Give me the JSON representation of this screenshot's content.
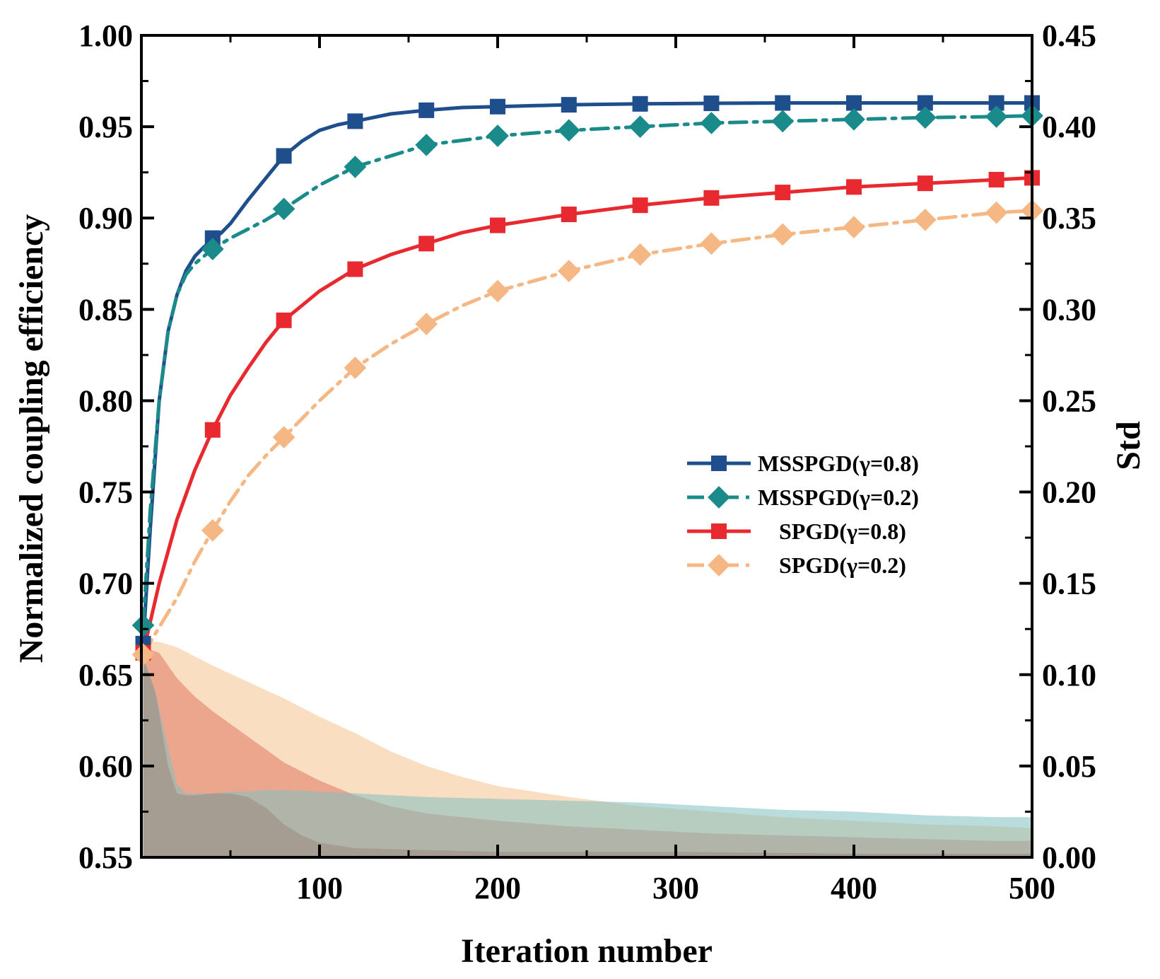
{
  "chart_data": {
    "type": "line",
    "xlabel": "Iteration number",
    "ylabel": "Normalized coupling efficiency",
    "y2label": "Std",
    "xlim": [
      0,
      500
    ],
    "ylim": [
      0.55,
      1.0
    ],
    "y2lim": [
      0.0,
      0.45
    ],
    "x_ticks": [
      100,
      200,
      300,
      400,
      500
    ],
    "x_tick_labels": [
      "100",
      "200",
      "300",
      "400",
      "500"
    ],
    "y_ticks": [
      0.55,
      0.6,
      0.65,
      0.7,
      0.75,
      0.8,
      0.85,
      0.9,
      0.95,
      1.0
    ],
    "y_tick_labels": [
      "0.55",
      "0.60",
      "0.65",
      "0.70",
      "0.75",
      "0.80",
      "0.85",
      "0.90",
      "0.95",
      "1.00"
    ],
    "y2_ticks": [
      0.0,
      0.05,
      0.1,
      0.15,
      0.2,
      0.25,
      0.3,
      0.35,
      0.4,
      0.45
    ],
    "y2_tick_labels": [
      "0.00",
      "0.05",
      "0.10",
      "0.15",
      "0.20",
      "0.25",
      "0.30",
      "0.35",
      "0.40",
      "0.45"
    ],
    "legend_position": "center-right",
    "series": [
      {
        "name": "MSSPGD(γ=0.8)",
        "color": "#1f4e8c",
        "dash": "solid",
        "marker": "square",
        "curve_x": [
          1,
          5,
          10,
          15,
          20,
          25,
          30,
          35,
          40,
          45,
          50,
          60,
          70,
          80,
          90,
          100,
          110,
          120,
          140,
          160,
          180,
          200,
          240,
          280,
          320,
          360,
          400,
          440,
          480,
          500
        ],
        "curve_y": [
          0.667,
          0.73,
          0.8,
          0.838,
          0.858,
          0.871,
          0.879,
          0.884,
          0.888,
          0.892,
          0.897,
          0.91,
          0.922,
          0.934,
          0.942,
          0.948,
          0.951,
          0.953,
          0.957,
          0.959,
          0.9605,
          0.961,
          0.962,
          0.9625,
          0.9628,
          0.963,
          0.963,
          0.963,
          0.963,
          0.963
        ],
        "marker_x": [
          1,
          40,
          80,
          120,
          160,
          200,
          240,
          280,
          320,
          360,
          400,
          440,
          480,
          500
        ],
        "marker_y": [
          0.667,
          0.889,
          0.934,
          0.953,
          0.959,
          0.961,
          0.962,
          0.9625,
          0.9628,
          0.963,
          0.963,
          0.963,
          0.963,
          0.963
        ]
      },
      {
        "name": "MSSPGD(γ=0.2)",
        "color": "#1b8a8a",
        "dash": "dashdot",
        "marker": "diamond",
        "curve_x": [
          1,
          5,
          10,
          15,
          20,
          25,
          30,
          40,
          50,
          60,
          70,
          80,
          100,
          120,
          160,
          200,
          240,
          280,
          320,
          360,
          400,
          440,
          480,
          500
        ],
        "curve_y": [
          0.677,
          0.74,
          0.8,
          0.838,
          0.858,
          0.869,
          0.875,
          0.883,
          0.889,
          0.894,
          0.899,
          0.905,
          0.918,
          0.928,
          0.94,
          0.945,
          0.948,
          0.95,
          0.952,
          0.953,
          0.954,
          0.955,
          0.9555,
          0.956
        ],
        "marker_x": [
          1,
          40,
          80,
          120,
          160,
          200,
          240,
          280,
          320,
          360,
          400,
          440,
          480,
          500
        ],
        "marker_y": [
          0.677,
          0.883,
          0.905,
          0.928,
          0.94,
          0.945,
          0.948,
          0.95,
          0.952,
          0.953,
          0.954,
          0.955,
          0.9555,
          0.956
        ]
      },
      {
        "name": "SPGD(γ=0.8)",
        "color": "#e8292f",
        "dash": "solid",
        "marker": "square",
        "curve_x": [
          1,
          10,
          20,
          30,
          40,
          50,
          60,
          70,
          80,
          100,
          120,
          140,
          160,
          180,
          200,
          240,
          280,
          320,
          360,
          400,
          440,
          480,
          500
        ],
        "curve_y": [
          0.662,
          0.7,
          0.735,
          0.762,
          0.784,
          0.803,
          0.818,
          0.832,
          0.844,
          0.86,
          0.872,
          0.88,
          0.886,
          0.892,
          0.896,
          0.902,
          0.907,
          0.911,
          0.914,
          0.917,
          0.919,
          0.921,
          0.922
        ],
        "marker_x": [
          1,
          40,
          80,
          120,
          160,
          200,
          240,
          280,
          320,
          360,
          400,
          440,
          480,
          500
        ],
        "marker_y": [
          0.662,
          0.784,
          0.844,
          0.872,
          0.886,
          0.896,
          0.902,
          0.907,
          0.911,
          0.914,
          0.917,
          0.919,
          0.921,
          0.922
        ]
      },
      {
        "name": "SPGD(γ=0.2)",
        "color": "#f5b783",
        "dash": "dashdot",
        "marker": "diamond",
        "curve_x": [
          1,
          10,
          20,
          30,
          40,
          50,
          60,
          70,
          80,
          100,
          120,
          140,
          160,
          180,
          200,
          240,
          280,
          320,
          360,
          400,
          440,
          480,
          500
        ],
        "curve_y": [
          0.661,
          0.676,
          0.692,
          0.712,
          0.729,
          0.745,
          0.759,
          0.77,
          0.78,
          0.8,
          0.818,
          0.831,
          0.842,
          0.852,
          0.86,
          0.871,
          0.88,
          0.886,
          0.891,
          0.895,
          0.899,
          0.903,
          0.904
        ],
        "marker_x": [
          1,
          40,
          80,
          120,
          160,
          200,
          240,
          280,
          320,
          360,
          400,
          440,
          480,
          500
        ],
        "marker_y": [
          0.661,
          0.729,
          0.78,
          0.818,
          0.842,
          0.86,
          0.871,
          0.88,
          0.886,
          0.891,
          0.895,
          0.899,
          0.903,
          0.904
        ]
      }
    ],
    "std_bands": [
      {
        "name": "SPGD(γ=0.2) std",
        "color": "#f5c89a",
        "opacity": 0.6,
        "x": [
          1,
          10,
          20,
          40,
          60,
          80,
          100,
          120,
          140,
          160,
          180,
          200,
          240,
          280,
          320,
          360,
          400,
          440,
          480,
          500
        ],
        "std": [
          0.118,
          0.118,
          0.115,
          0.105,
          0.096,
          0.087,
          0.077,
          0.068,
          0.058,
          0.05,
          0.044,
          0.039,
          0.033,
          0.028,
          0.025,
          0.022,
          0.02,
          0.018,
          0.017,
          0.016
        ]
      },
      {
        "name": "SPGD(γ=0.8) std",
        "color": "#e5806a",
        "opacity": 0.6,
        "x": [
          1,
          10,
          20,
          30,
          40,
          60,
          80,
          100,
          120,
          140,
          160,
          200,
          240,
          280,
          320,
          360,
          400,
          440,
          480,
          500
        ],
        "std": [
          0.115,
          0.112,
          0.098,
          0.088,
          0.08,
          0.066,
          0.052,
          0.042,
          0.034,
          0.028,
          0.024,
          0.02,
          0.017,
          0.015,
          0.013,
          0.012,
          0.011,
          0.01,
          0.009,
          0.009
        ]
      },
      {
        "name": "MSSPGD(γ=0.2) std",
        "color": "#7fbfbf",
        "opacity": 0.55,
        "x": [
          1,
          8,
          15,
          20,
          25,
          30,
          40,
          50,
          60,
          70,
          80,
          100,
          120,
          160,
          200,
          240,
          280,
          320,
          360,
          400,
          440,
          480,
          500
        ],
        "std": [
          0.11,
          0.09,
          0.06,
          0.04,
          0.035,
          0.035,
          0.035,
          0.036,
          0.036,
          0.037,
          0.037,
          0.036,
          0.035,
          0.033,
          0.032,
          0.031,
          0.03,
          0.028,
          0.026,
          0.025,
          0.023,
          0.022,
          0.022
        ]
      },
      {
        "name": "MSSPGD(γ=0.8) std",
        "color": "#9a8a80",
        "opacity": 0.55,
        "x": [
          1,
          8,
          15,
          20,
          25,
          30,
          40,
          50,
          60,
          70,
          80,
          90,
          100,
          120,
          160,
          200,
          300,
          400,
          500
        ],
        "std": [
          0.11,
          0.09,
          0.05,
          0.035,
          0.034,
          0.034,
          0.035,
          0.035,
          0.033,
          0.027,
          0.018,
          0.012,
          0.008,
          0.005,
          0.004,
          0.003,
          0.003,
          0.002,
          0.002
        ]
      }
    ]
  }
}
